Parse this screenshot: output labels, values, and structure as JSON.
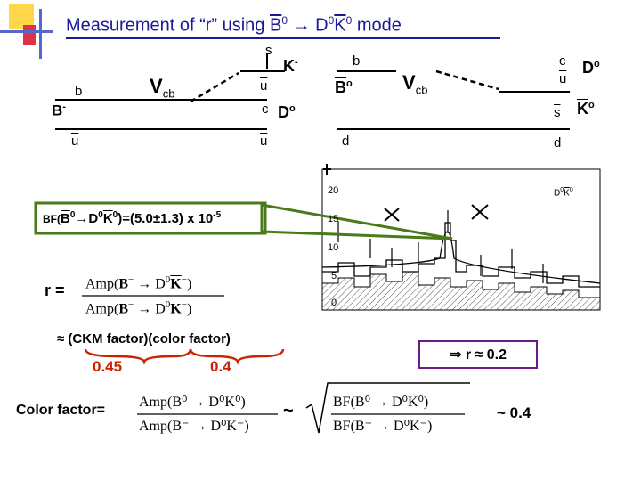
{
  "title": {
    "pre": "Measurement of “r” using ",
    "b": "B",
    "b_sup": "0",
    "arrow": " → D",
    "d_sup": "0",
    "k": "K",
    "k_sup": "0",
    "post": " mode"
  },
  "left_diagram": {
    "s": "s",
    "k": "K",
    "k_sup": "-",
    "vcb": "V",
    "vcb_sub": "cb",
    "b": "b",
    "bminus": "B",
    "bminus_sup": "-",
    "u1": "u",
    "c": "c",
    "d": "D",
    "d_sup": "o",
    "ubar_left": "u",
    "ubar_right": "u"
  },
  "right_diagram": {
    "b": "b",
    "b0": "B",
    "b0_sup": "o",
    "vcb": "V",
    "vcb_sub": "cb",
    "c": "c",
    "u": "u",
    "d0": "D",
    "d0_sup": "o",
    "s": "s",
    "k0": "K",
    "k0_sup": "o",
    "d1": "d",
    "d2": "d"
  },
  "plot": {
    "y_ticks": [
      "20",
      "15",
      "10",
      "5",
      "0"
    ],
    "label": "D",
    "label_sup": "0",
    "label_k": "K",
    "label_k_sup": "0"
  },
  "bf": {
    "pre": "BF(",
    "b": "B",
    "b_sup": "0",
    "arrow": "→D",
    "d_sup": "0",
    "k": "K",
    "k_sup": "0",
    "post": ")=(5.0±1.3) x 10",
    "exp": "-5"
  },
  "r_formula": {
    "label": "r =",
    "num_pre": "Amp(",
    "num_b": "B",
    "num_b_sup": "−",
    "num_mid": " → D",
    "num_d_sup": "0",
    "num_k": "K",
    "num_k_sup": "−",
    "num_post": ")",
    "den_pre": "Amp(",
    "den_b": "B",
    "den_b_sup": "−",
    "den_mid": " → D",
    "den_d_sup": "0",
    "den_k": "K",
    "den_k_sup": "−",
    "den_post": ")"
  },
  "ckm": {
    "text": "≈ (CKM factor)(color factor)",
    "v1": "0.45",
    "v2": "0.4"
  },
  "color_factor": {
    "label": "Color factor=",
    "num": "Amp(B⁰ → D⁰K⁰)",
    "den": "Amp(B⁻ → D⁰K⁻)",
    "tilde": "~",
    "sq_num": "BF(B⁰ → D⁰K⁰)",
    "sq_den": "BF(B⁻ → D⁰K⁻)"
  },
  "result_box": "⇒ r ≈ 0.2",
  "result": "~ 0.4",
  "colors": {
    "title": "#1a1a99",
    "green": "#4a7a1a",
    "red": "#cc2200",
    "box": "#6a1a8a"
  }
}
